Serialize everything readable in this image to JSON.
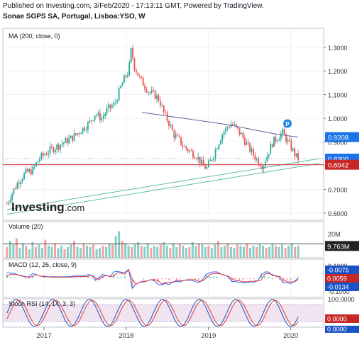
{
  "header": {
    "published": "Published on Investing.com, 3/Feb/2020 - 17:13:11 GMT, Powered by TradingView.",
    "symbol": "Sonae SGPS SA, Portugal, Lisboa:YSO, W"
  },
  "watermark": "Investing.com",
  "colors": {
    "up": "#26a69a",
    "down": "#ef5350",
    "ma": "#5b5ea6",
    "last_price_bg": "#1a73e8",
    "support_red": "#d32f2f",
    "trend_green": "#5fbf9f",
    "macd_line": "#2962ff",
    "signal_line": "#e53935",
    "stoch_k": "#1a53c7",
    "stoch_d": "#e53935",
    "rsi_band": "#e9d8ea"
  },
  "chart_data": [
    {
      "type": "candlestick",
      "panel": "price",
      "title": "",
      "indicator_label": "MA (200, close, 0)",
      "x_ticks": [
        "2017",
        "2018",
        "2019",
        "2020"
      ],
      "x_tick_positions_year": [
        2017.0,
        2018.0,
        2019.0,
        2020.0
      ],
      "x_range_year": [
        2016.5,
        2020.4
      ],
      "y_ticks": [
        "1.3000",
        "1.2000",
        "1.1000",
        "1.0000",
        "0.9000",
        "0.8000",
        "0.7000",
        "0.6000"
      ],
      "ylim": [
        0.57,
        1.38
      ],
      "price_path": [
        [
          2016.55,
          0.64
        ],
        [
          2016.62,
          0.69
        ],
        [
          2016.7,
          0.74
        ],
        [
          2016.78,
          0.77
        ],
        [
          2016.86,
          0.78
        ],
        [
          2016.94,
          0.83
        ],
        [
          2017.05,
          0.86
        ],
        [
          2017.15,
          0.88
        ],
        [
          2017.25,
          0.9
        ],
        [
          2017.35,
          0.92
        ],
        [
          2017.45,
          0.95
        ],
        [
          2017.55,
          0.98
        ],
        [
          2017.62,
          1.02
        ],
        [
          2017.7,
          1.0
        ],
        [
          2017.78,
          1.04
        ],
        [
          2017.86,
          1.06
        ],
        [
          2017.92,
          1.12
        ],
        [
          2017.98,
          1.17
        ],
        [
          2018.03,
          1.2
        ],
        [
          2018.06,
          1.29
        ],
        [
          2018.1,
          1.22
        ],
        [
          2018.16,
          1.17
        ],
        [
          2018.22,
          1.14
        ],
        [
          2018.28,
          1.11
        ],
        [
          2018.34,
          1.1
        ],
        [
          2018.4,
          1.08
        ],
        [
          2018.46,
          1.02
        ],
        [
          2018.52,
          0.98
        ],
        [
          2018.58,
          0.93
        ],
        [
          2018.64,
          0.91
        ],
        [
          2018.7,
          0.88
        ],
        [
          2018.78,
          0.86
        ],
        [
          2018.86,
          0.84
        ],
        [
          2018.93,
          0.8
        ],
        [
          2018.98,
          0.79
        ],
        [
          2019.04,
          0.83
        ],
        [
          2019.1,
          0.88
        ],
        [
          2019.16,
          0.93
        ],
        [
          2019.22,
          0.96
        ],
        [
          2019.28,
          0.98
        ],
        [
          2019.33,
          0.96
        ],
        [
          2019.4,
          0.93
        ],
        [
          2019.48,
          0.88
        ],
        [
          2019.54,
          0.85
        ],
        [
          2019.6,
          0.82
        ],
        [
          2019.66,
          0.8
        ],
        [
          2019.72,
          0.85
        ],
        [
          2019.78,
          0.9
        ],
        [
          2019.84,
          0.92
        ],
        [
          2019.9,
          0.94
        ],
        [
          2019.95,
          0.91
        ],
        [
          2020.0,
          0.88
        ],
        [
          2020.06,
          0.84
        ],
        [
          2020.09,
          0.83
        ]
      ],
      "ma200": [
        [
          2018.19,
          1.025
        ],
        [
          2018.4,
          1.015
        ],
        [
          2018.6,
          1.005
        ],
        [
          2018.8,
          0.995
        ],
        [
          2019.0,
          0.985
        ],
        [
          2019.2,
          0.975
        ],
        [
          2019.4,
          0.962
        ],
        [
          2019.6,
          0.948
        ],
        [
          2019.8,
          0.935
        ],
        [
          2020.0,
          0.925
        ],
        [
          2020.09,
          0.921
        ]
      ],
      "horizontal_lines": [
        {
          "value": 0.8042,
          "label": "0.8042",
          "style": "solid"
        },
        {
          "value": 0.83,
          "label": "0.8300",
          "style": "dotted"
        }
      ],
      "trendlines": [
        {
          "from": [
            2016.55,
            0.615
          ],
          "to": [
            2020.35,
            0.83
          ]
        },
        {
          "from": [
            2016.55,
            0.595
          ],
          "to": [
            2020.35,
            0.81
          ]
        }
      ],
      "price_labels": [
        "0.9208",
        "0.8300",
        "0.8042"
      ],
      "event_marker": {
        "x": 2019.96,
        "y": 0.96,
        "label": "P"
      }
    },
    {
      "type": "bar",
      "panel": "volume",
      "indicator_label": "Volume (20)",
      "y_ticks": [
        "20M"
      ],
      "current_value": "9.763M",
      "bar_count": 92,
      "ylim": [
        0,
        30
      ],
      "bars_m": [
        9,
        14,
        11,
        16,
        8,
        12,
        10,
        7,
        13,
        9,
        11,
        8,
        15,
        10,
        9,
        12,
        8,
        10,
        7,
        9,
        11,
        14,
        9,
        8,
        12,
        10,
        9,
        11,
        7,
        8,
        10,
        9,
        12,
        11,
        18,
        22,
        14,
        12,
        10,
        9,
        11,
        13,
        10,
        9,
        12,
        8,
        10,
        9,
        11,
        13,
        10,
        8,
        12,
        9,
        11,
        10,
        8,
        9,
        13,
        10,
        12,
        11,
        9,
        10,
        8,
        11,
        14,
        9,
        10,
        12,
        9,
        8,
        11,
        10,
        9,
        12,
        8,
        10,
        9,
        11,
        10,
        8,
        9,
        12,
        10,
        9,
        11,
        8,
        10,
        12,
        9,
        10
      ],
      "ma_m": 11.5
    },
    {
      "type": "line",
      "panel": "macd",
      "indicator_label": "MACD (12, 26, close, 9)",
      "y_ticks": [
        "0.1000",
        "-0.1000"
      ],
      "ylim": [
        -0.15,
        0.15
      ],
      "labels": [
        "-0.0075",
        "0.0059",
        "-0.0134"
      ]
    },
    {
      "type": "line",
      "panel": "stoch_rsi",
      "indicator_label": "Stoch RSI (14, 14, 3, 3)",
      "y_ticks": [
        "100.0000"
      ],
      "ylim": [
        0,
        100
      ],
      "band": [
        20,
        80
      ],
      "labels": [
        "0.0000",
        "0.0000"
      ]
    }
  ]
}
